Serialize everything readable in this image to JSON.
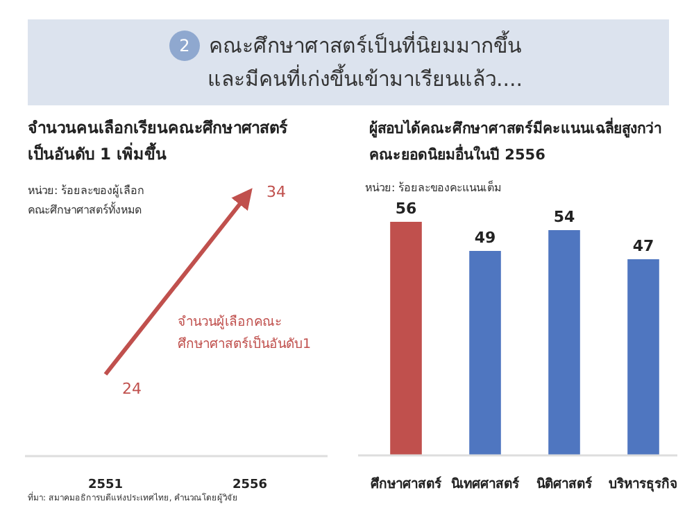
{
  "chart_data": [
    {
      "type": "other",
      "title": "คณะศึกษาศาสตร์เป็นที่นิยมมากขึ้น\nและมีคนที่เก่งขึ้นเข้ามาเรียนแล้ว....",
      "annotations": [
        "2"
      ]
    },
    {
      "type": "line",
      "title": "จำนวนคนเลือกเรียนคณะศึกษาศาสตร์\nเป็นอันดับ 1 เพิ่มขึ้น",
      "subtitle": "หน่วย: ร้อยละของผู้เลือก\nคณะศึกษาศาสตร์ทั้งหมด",
      "categories": [
        "2551",
        "2556"
      ],
      "series": [
        {
          "name": "จำนวนผู้เลือกคณะ\nศึกษาศาสตร์เป็นอันดับ1",
          "color": "#c0504d",
          "values": [
            24,
            34
          ]
        }
      ],
      "data_labels": true,
      "marker": "none",
      "annotations": [
        "ที่มา: สมาคมอธิการบดีแห่งประเทศไทย, คำนวณโดยผู้วิจัย"
      ]
    },
    {
      "type": "bar",
      "title": "ผู้สอบได้คณะศึกษาศาสตร์มีคะแนนเฉลี่ยสูงกว่า\nคณะยอดนิยมอื่นในปี 2556",
      "subtitle": "หน่วย: ร้อยละของคะแนนเต็ม",
      "categories": [
        "ศึกษาศาสตร์",
        "นิเทศศาสตร์",
        "นิติศาสตร์",
        "บริหารธุรกิจ"
      ],
      "values": [
        56,
        49,
        54,
        47
      ],
      "colors": [
        "#c0504d",
        "#4f76c0",
        "#4f76c0",
        "#4f76c0"
      ],
      "data_labels": true
    }
  ]
}
